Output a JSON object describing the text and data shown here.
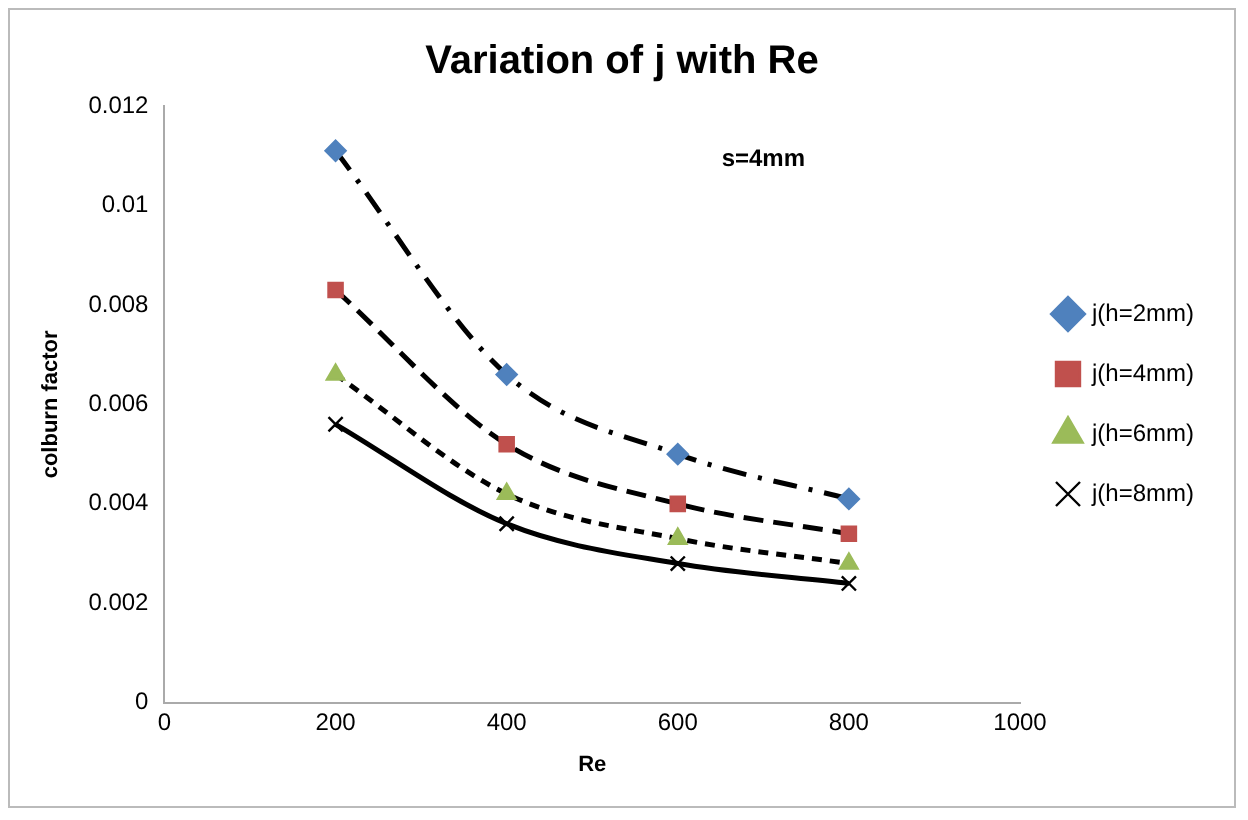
{
  "chart_data": {
    "type": "line",
    "title": "Variation of j with Re",
    "xlabel": "Re",
    "ylabel": "colburn factor",
    "annotations": [
      "s=4mm"
    ],
    "x": [
      200,
      400,
      600,
      800
    ],
    "xlim": [
      0,
      1000
    ],
    "xticks": [
      0,
      200,
      400,
      600,
      800,
      1000
    ],
    "ylim": [
      0,
      0.012
    ],
    "yticks": [
      0,
      0.002,
      0.004,
      0.006,
      0.008,
      0.01,
      0.012
    ],
    "grid": false,
    "legend": "right",
    "series": [
      {
        "name": "j(h=2mm)",
        "color": "#4f81bd",
        "marker": "diamond",
        "line_style": "dashdot",
        "values": [
          0.0111,
          0.0066,
          0.005,
          0.0041
        ]
      },
      {
        "name": "j(h=4mm)",
        "color": "#c0504d",
        "marker": "square",
        "line_style": "dashed",
        "values": [
          0.0083,
          0.0052,
          0.004,
          0.0034
        ]
      },
      {
        "name": "j(h=6mm)",
        "color": "#9bbb59",
        "marker": "triangle",
        "line_style": "dotted",
        "values": [
          0.0066,
          0.0042,
          0.0033,
          0.0028
        ]
      },
      {
        "name": "j(h=8mm)",
        "color": "#000000",
        "marker": "cross",
        "line_style": "solid",
        "values": [
          0.0056,
          0.0036,
          0.0028,
          0.0024
        ]
      }
    ]
  }
}
